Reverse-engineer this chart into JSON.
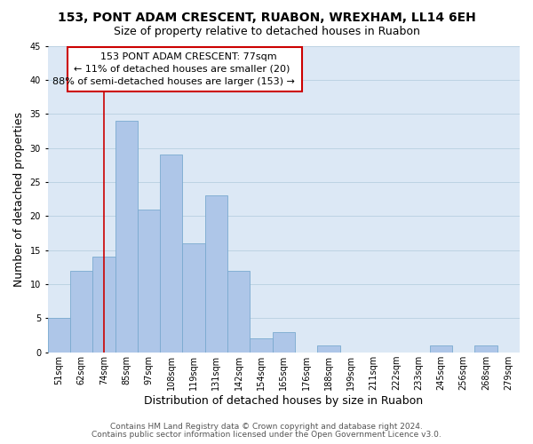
{
  "title": "153, PONT ADAM CRESCENT, RUABON, WREXHAM, LL14 6EH",
  "subtitle": "Size of property relative to detached houses in Ruabon",
  "xlabel": "Distribution of detached houses by size in Ruabon",
  "ylabel": "Number of detached properties",
  "categories": [
    "51sqm",
    "62sqm",
    "74sqm",
    "85sqm",
    "97sqm",
    "108sqm",
    "119sqm",
    "131sqm",
    "142sqm",
    "154sqm",
    "165sqm",
    "176sqm",
    "188sqm",
    "199sqm",
    "211sqm",
    "222sqm",
    "233sqm",
    "245sqm",
    "256sqm",
    "268sqm",
    "279sqm"
  ],
  "values": [
    5,
    12,
    14,
    34,
    21,
    29,
    16,
    23,
    12,
    2,
    3,
    0,
    1,
    0,
    0,
    0,
    0,
    1,
    0,
    1,
    0
  ],
  "bar_color": "#aec6e8",
  "bar_edge_color": "#7aaacf",
  "vline_x": 2,
  "vline_color": "#cc0000",
  "annotation_line1": "153 PONT ADAM CRESCENT: 77sqm",
  "annotation_line2": "← 11% of detached houses are smaller (20)",
  "annotation_line3": "88% of semi-detached houses are larger (153) →",
  "ylim": [
    0,
    45
  ],
  "yticks": [
    0,
    5,
    10,
    15,
    20,
    25,
    30,
    35,
    40,
    45
  ],
  "footer1": "Contains HM Land Registry data © Crown copyright and database right 2024.",
  "footer2": "Contains public sector information licensed under the Open Government Licence v3.0.",
  "bg_color": "#ffffff",
  "plot_bg_color": "#dce8f5",
  "grid_color": "#b8cfe0",
  "title_fontsize": 10,
  "subtitle_fontsize": 9,
  "axis_label_fontsize": 9,
  "tick_fontsize": 7,
  "annotation_fontsize": 8,
  "footer_fontsize": 6.5
}
